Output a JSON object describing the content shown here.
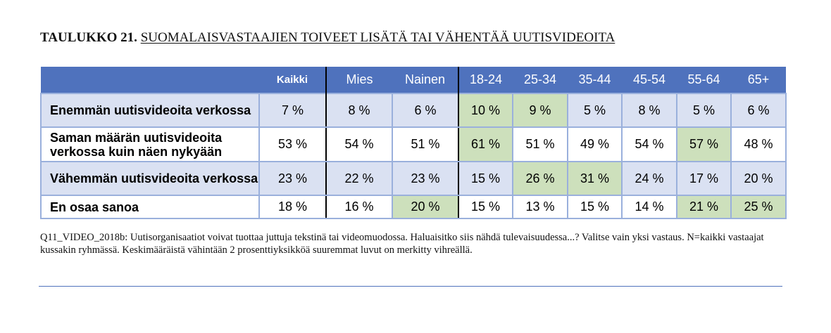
{
  "title": {
    "label": "TAULUKKO 21.",
    "text": "SUOMALAISVASTAAJIEN TOIVEET LISÄTÄ TAI VÄHENTÄÄ UUTISVIDEOITA"
  },
  "table": {
    "columns": [
      "Kaikki",
      "Mies",
      "Nainen",
      "18-24",
      "25-34",
      "35-44",
      "45-54",
      "55-64",
      "65+"
    ],
    "rows": [
      {
        "label": "Enemmän uutisvideoita verkossa",
        "values": [
          "7 %",
          "8 %",
          "6 %",
          "10 %",
          "9 %",
          "5 %",
          "8 %",
          "5 %",
          "6 %"
        ],
        "highlighted": [
          false,
          false,
          false,
          true,
          true,
          false,
          false,
          false,
          false
        ]
      },
      {
        "label": "Saman määrän uutisvideoita verkossa kuin näen nykyään",
        "values": [
          "53 %",
          "54 %",
          "51 %",
          "61 %",
          "51 %",
          "49 %",
          "54 %",
          "57 %",
          "48 %"
        ],
        "highlighted": [
          false,
          false,
          false,
          true,
          false,
          false,
          false,
          true,
          false
        ]
      },
      {
        "label": "Vähemmän uutisvideoita verkossa",
        "values": [
          "23 %",
          "22 %",
          "23 %",
          "15 %",
          "26 %",
          "31 %",
          "24 %",
          "17 %",
          "20 %"
        ],
        "highlighted": [
          false,
          false,
          false,
          false,
          true,
          true,
          false,
          false,
          false
        ]
      },
      {
        "label": "En osaa sanoa",
        "values": [
          "18 %",
          "16 %",
          "20 %",
          "15 %",
          "13 %",
          "15 %",
          "14 %",
          "21 %",
          "25 %"
        ],
        "highlighted": [
          false,
          false,
          true,
          false,
          false,
          false,
          false,
          true,
          true
        ]
      }
    ]
  },
  "note": "Q11_VIDEO_2018b: Uutisorganisaatiot voivat tuottaa juttuja tekstinä tai videomuodossa. Haluaisitko siis nähdä tulevaisuudessa...? Valitse vain yksi vastaus. N=kaikki vastaajat kussakin ryhmässä. Keskimääräistä vähintään 2 prosenttiyksikköä suuremmat luvut on merkitty vihreällä.",
  "colors": {
    "header": "#4f72bd",
    "highlight": "#cde0bc",
    "row_shade": "#dae1f2",
    "grid": "#9ab0dc"
  }
}
